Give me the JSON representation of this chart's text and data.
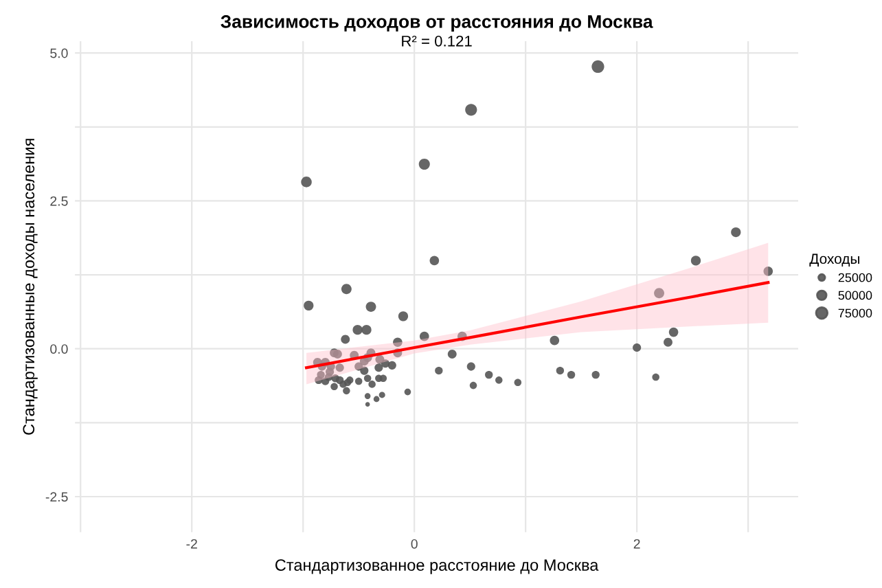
{
  "chart_data": {
    "type": "bubble",
    "title": "Зависимость доходов от расстояния до Москва",
    "subtitle": "R² = 0.121",
    "xlabel": "Стандартизованное расстояние до Москва",
    "ylabel": "Стандартизованные доходы населения",
    "legend_title": "Доходы",
    "xlim": [
      -3.05,
      3.45
    ],
    "ylim": [
      -3.1,
      5.2
    ],
    "xticks": [
      {
        "value": -3,
        "label": null
      },
      -2,
      {
        "value": -1,
        "label": null
      },
      0,
      {
        "value": 1,
        "label": null
      },
      2,
      {
        "value": 3,
        "label": null
      }
    ],
    "yticks": [
      {
        "value": -2.5,
        "label": "-2.5"
      },
      {
        "value": -1.25,
        "label": null
      },
      {
        "value": 0,
        "label": "0.0"
      },
      {
        "value": 1.25,
        "label": null
      },
      {
        "value": 2.5,
        "label": "2.5"
      },
      {
        "value": 3.75,
        "label": null
      },
      {
        "value": 5,
        "label": "5.0"
      }
    ],
    "grid": true,
    "size_legend": [
      25000,
      50000,
      75000
    ],
    "series": [
      {
        "color": "#555555",
        "x": [
          -0.97,
          0.09,
          0.51,
          1.65,
          0.18,
          2.89,
          2.53,
          3.18,
          -0.61,
          -0.95,
          -0.39,
          -0.1,
          -0.51,
          -0.43,
          -0.62,
          0.09,
          0.43,
          2.2,
          2.33,
          2.28,
          2.0,
          1.26,
          0.34,
          -0.15,
          -0.15,
          0.22,
          0.51,
          0.53,
          0.67,
          0.76,
          0.93,
          1.31,
          1.41,
          1.63,
          2.17,
          -0.06,
          -0.29,
          -0.34,
          -0.42,
          -0.42,
          -0.87,
          -0.8,
          -0.72,
          -0.69,
          -0.54,
          -0.39,
          -0.42,
          -0.31,
          -0.26,
          -0.2,
          -0.32,
          -0.45,
          -0.5,
          -0.67,
          -0.76,
          -0.84,
          -0.86,
          -0.8,
          -0.72,
          -0.67,
          -0.6,
          -0.61,
          -0.58,
          -0.5,
          -0.42,
          -0.38,
          -0.32,
          -0.28,
          -0.77,
          -0.71,
          -0.64,
          -0.83,
          -0.75,
          -0.45
        ],
        "values": [
          2.82,
          3.12,
          4.04,
          4.77,
          1.49,
          1.97,
          1.49,
          1.31,
          1.01,
          0.73,
          0.71,
          0.55,
          0.32,
          0.32,
          0.16,
          0.21,
          0.21,
          0.94,
          0.28,
          0.11,
          0.02,
          0.14,
          -0.09,
          0.11,
          -0.07,
          -0.37,
          -0.3,
          -0.62,
          -0.44,
          -0.53,
          -0.57,
          -0.37,
          -0.44,
          -0.44,
          -0.48,
          -0.73,
          -0.78,
          -0.85,
          -0.8,
          -0.94,
          -0.23,
          -0.23,
          -0.07,
          -0.09,
          -0.11,
          -0.07,
          -0.15,
          -0.18,
          -0.25,
          -0.28,
          -0.32,
          -0.37,
          -0.3,
          -0.32,
          -0.39,
          -0.44,
          -0.53,
          -0.55,
          -0.64,
          -0.53,
          -0.57,
          -0.71,
          -0.53,
          -0.55,
          -0.5,
          -0.6,
          -0.5,
          -0.5,
          -0.48,
          -0.5,
          -0.6,
          -0.3,
          -0.3,
          -0.21
        ],
        "sizes": [
          65000,
          70000,
          80000,
          90000,
          50000,
          55000,
          55000,
          50000,
          60000,
          55000,
          60000,
          55000,
          55000,
          55000,
          45000,
          50000,
          50000,
          60000,
          50000,
          45000,
          40000,
          50000,
          45000,
          50000,
          45000,
          35000,
          40000,
          30000,
          35000,
          30000,
          30000,
          35000,
          35000,
          35000,
          30000,
          25000,
          22000,
          20000,
          20000,
          12000,
          45000,
          45000,
          45000,
          45000,
          45000,
          45000,
          45000,
          45000,
          40000,
          40000,
          40000,
          40000,
          40000,
          40000,
          40000,
          35000,
          35000,
          35000,
          30000,
          35000,
          30000,
          30000,
          30000,
          30000,
          30000,
          30000,
          30000,
          30000,
          35000,
          35000,
          30000,
          40000,
          40000,
          45000
        ]
      },
      {
        "type": "line",
        "color": "#ff0000",
        "x": [
          -0.97,
          0,
          0.5,
          1.5,
          2.5,
          3.18
        ],
        "values": [
          -0.32,
          0.02,
          0.19,
          0.54,
          0.88,
          1.12
        ],
        "lower": [
          -0.6,
          -0.08,
          0.07,
          0.28,
          0.38,
          0.44
        ],
        "upper": [
          -0.07,
          0.14,
          0.31,
          0.8,
          1.38,
          1.79
        ]
      }
    ]
  }
}
